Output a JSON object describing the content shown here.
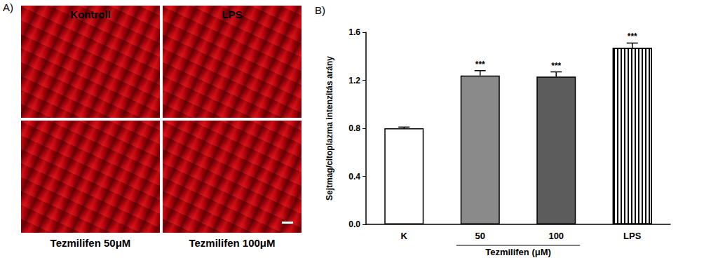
{
  "panel_a": {
    "label": "A)",
    "images": [
      {
        "title": "Kontroll",
        "title_position": "top"
      },
      {
        "title": "LPS",
        "title_position": "top"
      },
      {
        "title": "Tezmilifen 50μM",
        "title_position": "bottom"
      },
      {
        "title": "Tezmilifen 100μM",
        "title_position": "bottom"
      }
    ]
  },
  "panel_b": {
    "label": "B)"
  },
  "chart_data": {
    "type": "bar",
    "y_label": "Sejtmag/citoplazma intenzitás arány",
    "categories": [
      "K",
      "50",
      "100",
      "LPS"
    ],
    "values": [
      0.8,
      1.24,
      1.23,
      1.47
    ],
    "errors": [
      0.01,
      0.04,
      0.04,
      0.04
    ],
    "annotations": [
      null,
      "***",
      "***",
      "***"
    ],
    "groups": [
      {
        "label": "Tezmilifen (μM)",
        "categories": [
          "50",
          "100"
        ]
      }
    ],
    "colors": [
      "#ffffff",
      "#8a8a8a",
      "#5c5c5c",
      "#ffffff"
    ],
    "ylim": [
      0,
      1.6
    ],
    "yticks": [
      {
        "value": 0,
        "label": "0.0"
      },
      0.4,
      0.8,
      1.2,
      1.6
    ],
    "grid": false
  }
}
